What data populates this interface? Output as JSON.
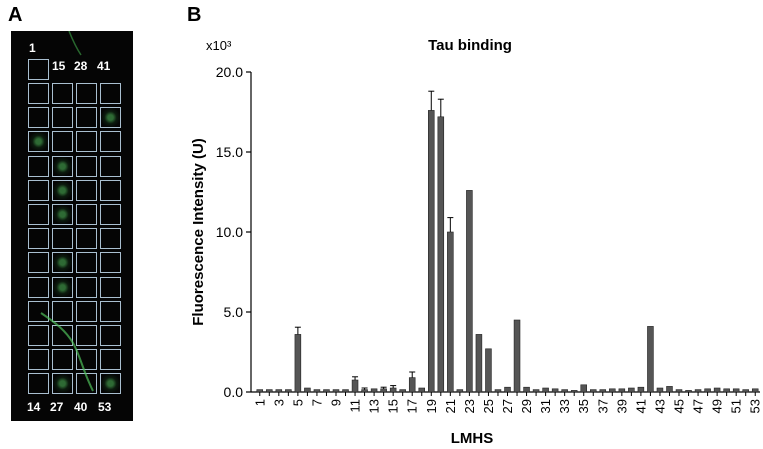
{
  "panels": {
    "a_label": "A",
    "b_label": "B"
  },
  "array_image": {
    "top_labels": [
      "1",
      "15",
      "28",
      "41"
    ],
    "bottom_labels": [
      "14",
      "27",
      "40",
      "53"
    ],
    "rows": 14,
    "cols": 4
  },
  "chart_data": {
    "type": "bar",
    "title": "Tau binding",
    "ylabel": "Fluorescence Intensity (U)",
    "xlabel": "LMHS",
    "y_multiplier": "x10³",
    "ylim": [
      0,
      20.0
    ],
    "yticks": [
      "0.0",
      "5.0",
      "10.0",
      "15.0",
      "20.0"
    ],
    "xtick_labels": [
      "1",
      "3",
      "5",
      "7",
      "9",
      "11",
      "13",
      "15",
      "17",
      "19",
      "21",
      "23",
      "25",
      "27",
      "29",
      "31",
      "33",
      "35",
      "37",
      "39",
      "41",
      "43",
      "45",
      "47",
      "49",
      "51",
      "53"
    ],
    "categories": [
      1,
      2,
      3,
      4,
      5,
      6,
      7,
      8,
      9,
      10,
      11,
      12,
      13,
      14,
      15,
      16,
      17,
      18,
      19,
      20,
      21,
      22,
      23,
      24,
      25,
      26,
      27,
      28,
      29,
      30,
      31,
      32,
      33,
      34,
      35,
      36,
      37,
      38,
      39,
      40,
      41,
      42,
      43,
      44,
      45,
      46,
      47,
      48,
      49,
      50,
      51,
      52,
      53
    ],
    "values": [
      0.15,
      0.15,
      0.15,
      0.15,
      3.6,
      0.25,
      0.15,
      0.15,
      0.15,
      0.15,
      0.75,
      0.15,
      0.2,
      0.2,
      0.25,
      0.15,
      0.9,
      0.25,
      17.6,
      17.2,
      10.0,
      0.15,
      12.6,
      3.6,
      2.7,
      0.15,
      0.3,
      4.5,
      0.3,
      0.15,
      0.25,
      0.2,
      0.15,
      0.1,
      0.45,
      0.15,
      0.15,
      0.2,
      0.2,
      0.25,
      0.3,
      4.1,
      0.25,
      0.35,
      0.15,
      0.1,
      0.15,
      0.2,
      0.25,
      0.2,
      0.2,
      0.15,
      0.2
    ],
    "errors": [
      0,
      0,
      0,
      0,
      0.45,
      0,
      0,
      0,
      0,
      0,
      0.2,
      0.1,
      0,
      0.1,
      0.15,
      0,
      0.35,
      0,
      1.2,
      1.1,
      0.9,
      0,
      0,
      0,
      0,
      0,
      0,
      0,
      0,
      0,
      0,
      0,
      0,
      0,
      0,
      0,
      0,
      0,
      0,
      0,
      0,
      0,
      0,
      0,
      0,
      0,
      0,
      0,
      0,
      0,
      0,
      0,
      0
    ],
    "bar_color": "#555555",
    "grid": false
  }
}
